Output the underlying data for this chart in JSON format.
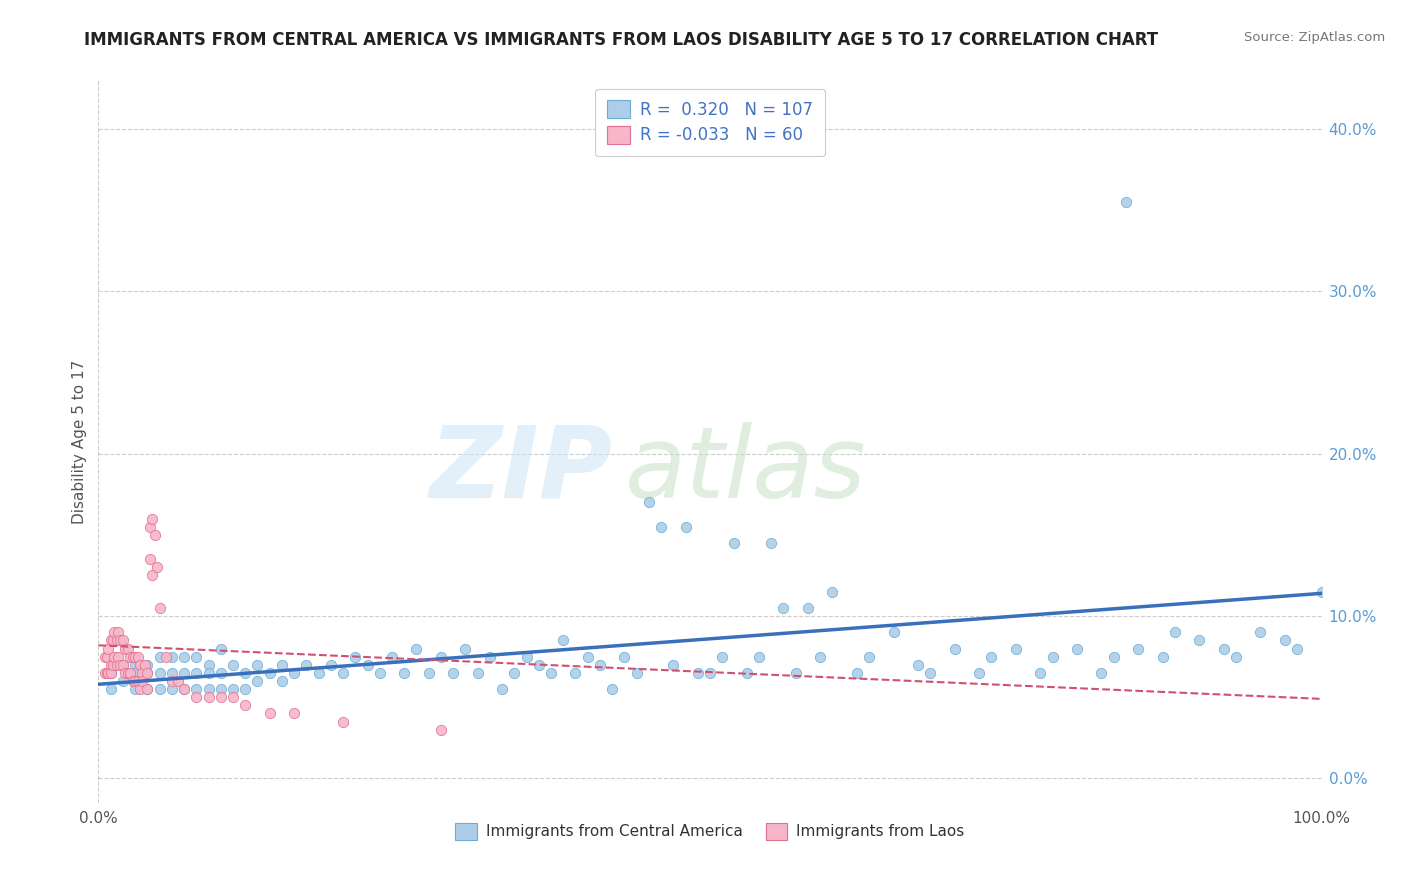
{
  "title": "IMMIGRANTS FROM CENTRAL AMERICA VS IMMIGRANTS FROM LAOS DISABILITY AGE 5 TO 17 CORRELATION CHART",
  "source": "Source: ZipAtlas.com",
  "ylabel": "Disability Age 5 to 17",
  "legend_label1": "Immigrants from Central America",
  "legend_label2": "Immigrants from Laos",
  "R1": 0.32,
  "N1": 107,
  "R2": -0.033,
  "N2": 60,
  "blue_color": "#aecde8",
  "blue_edge": "#6aaed6",
  "pink_color": "#f7b6c9",
  "pink_edge": "#e07090",
  "blue_line_color": "#3a6fbc",
  "pink_line_color": "#d05070",
  "xlim": [
    0.0,
    1.0
  ],
  "ylim": [
    -0.015,
    0.43
  ],
  "right_yticks": [
    0.0,
    0.1,
    0.2,
    0.3,
    0.4
  ],
  "right_yticklabels": [
    "0.0%",
    "10.0%",
    "20.0%",
    "30.0%",
    "40.0%"
  ],
  "blue_trend_x": [
    0.0,
    1.0
  ],
  "blue_trend_y": [
    0.058,
    0.114
  ],
  "pink_trend_x": [
    0.0,
    1.0
  ],
  "pink_trend_y": [
    0.082,
    0.049
  ],
  "blue_scatter_x": [
    0.01,
    0.01,
    0.02,
    0.02,
    0.03,
    0.03,
    0.03,
    0.04,
    0.04,
    0.04,
    0.05,
    0.05,
    0.05,
    0.06,
    0.06,
    0.06,
    0.07,
    0.07,
    0.07,
    0.08,
    0.08,
    0.08,
    0.09,
    0.09,
    0.09,
    0.1,
    0.1,
    0.1,
    0.11,
    0.11,
    0.12,
    0.12,
    0.13,
    0.13,
    0.14,
    0.15,
    0.15,
    0.16,
    0.17,
    0.18,
    0.19,
    0.2,
    0.21,
    0.22,
    0.23,
    0.24,
    0.25,
    0.26,
    0.27,
    0.28,
    0.29,
    0.3,
    0.31,
    0.32,
    0.33,
    0.34,
    0.35,
    0.36,
    0.37,
    0.38,
    0.39,
    0.4,
    0.41,
    0.42,
    0.43,
    0.44,
    0.45,
    0.46,
    0.47,
    0.48,
    0.49,
    0.5,
    0.51,
    0.52,
    0.53,
    0.54,
    0.55,
    0.56,
    0.57,
    0.58,
    0.59,
    0.6,
    0.62,
    0.63,
    0.65,
    0.67,
    0.68,
    0.7,
    0.72,
    0.73,
    0.75,
    0.77,
    0.78,
    0.8,
    0.82,
    0.83,
    0.85,
    0.87,
    0.88,
    0.9,
    0.92,
    0.93,
    0.95,
    0.97,
    0.98,
    1.0,
    0.84
  ],
  "blue_scatter_y": [
    0.065,
    0.055,
    0.07,
    0.06,
    0.07,
    0.055,
    0.065,
    0.07,
    0.055,
    0.065,
    0.075,
    0.055,
    0.065,
    0.075,
    0.055,
    0.065,
    0.075,
    0.055,
    0.065,
    0.075,
    0.055,
    0.065,
    0.07,
    0.055,
    0.065,
    0.08,
    0.055,
    0.065,
    0.07,
    0.055,
    0.065,
    0.055,
    0.07,
    0.06,
    0.065,
    0.07,
    0.06,
    0.065,
    0.07,
    0.065,
    0.07,
    0.065,
    0.075,
    0.07,
    0.065,
    0.075,
    0.065,
    0.08,
    0.065,
    0.075,
    0.065,
    0.08,
    0.065,
    0.075,
    0.055,
    0.065,
    0.075,
    0.07,
    0.065,
    0.085,
    0.065,
    0.075,
    0.07,
    0.055,
    0.075,
    0.065,
    0.17,
    0.155,
    0.07,
    0.155,
    0.065,
    0.065,
    0.075,
    0.145,
    0.065,
    0.075,
    0.145,
    0.105,
    0.065,
    0.105,
    0.075,
    0.115,
    0.065,
    0.075,
    0.09,
    0.07,
    0.065,
    0.08,
    0.065,
    0.075,
    0.08,
    0.065,
    0.075,
    0.08,
    0.065,
    0.075,
    0.08,
    0.075,
    0.09,
    0.085,
    0.08,
    0.075,
    0.09,
    0.085,
    0.08,
    0.115,
    0.355
  ],
  "pink_scatter_x": [
    0.005,
    0.005,
    0.007,
    0.007,
    0.008,
    0.008,
    0.01,
    0.01,
    0.01,
    0.012,
    0.012,
    0.013,
    0.013,
    0.015,
    0.015,
    0.016,
    0.016,
    0.018,
    0.018,
    0.02,
    0.02,
    0.022,
    0.022,
    0.024,
    0.024,
    0.026,
    0.026,
    0.028,
    0.028,
    0.03,
    0.03,
    0.032,
    0.032,
    0.034,
    0.034,
    0.036,
    0.036,
    0.038,
    0.04,
    0.04,
    0.042,
    0.042,
    0.044,
    0.044,
    0.046,
    0.048,
    0.05,
    0.055,
    0.06,
    0.065,
    0.07,
    0.08,
    0.09,
    0.1,
    0.11,
    0.12,
    0.14,
    0.16,
    0.2,
    0.28
  ],
  "pink_scatter_y": [
    0.075,
    0.065,
    0.075,
    0.065,
    0.08,
    0.065,
    0.085,
    0.07,
    0.065,
    0.085,
    0.07,
    0.09,
    0.075,
    0.085,
    0.07,
    0.09,
    0.075,
    0.085,
    0.07,
    0.085,
    0.07,
    0.08,
    0.065,
    0.08,
    0.065,
    0.075,
    0.065,
    0.075,
    0.06,
    0.075,
    0.06,
    0.075,
    0.06,
    0.07,
    0.055,
    0.065,
    0.06,
    0.07,
    0.065,
    0.055,
    0.155,
    0.135,
    0.16,
    0.125,
    0.15,
    0.13,
    0.105,
    0.075,
    0.06,
    0.06,
    0.055,
    0.05,
    0.05,
    0.05,
    0.05,
    0.045,
    0.04,
    0.04,
    0.035,
    0.03
  ]
}
